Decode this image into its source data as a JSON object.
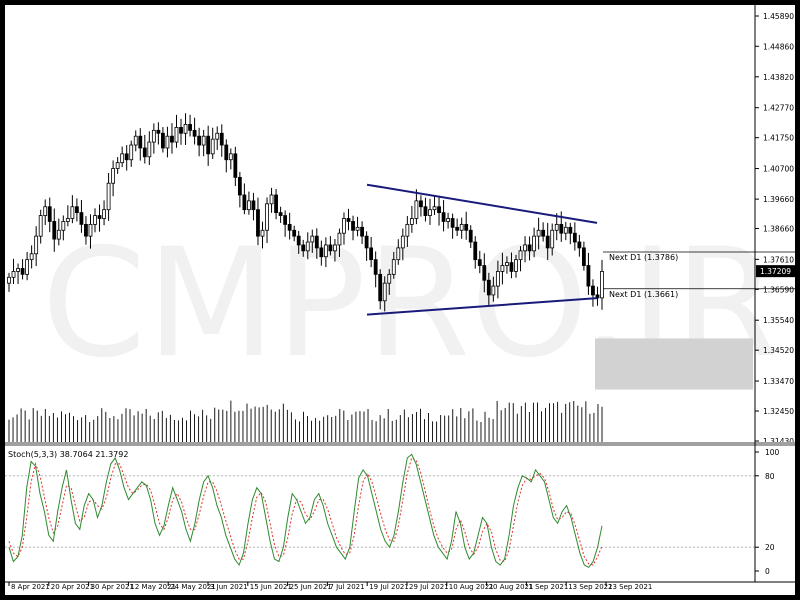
{
  "chart_data": [
    {
      "type": "candlestick",
      "title": "",
      "watermark": "CMPRO.IR",
      "y_axis_ticks": [
        "1.45890",
        "1.44860",
        "1.43820",
        "1.42770",
        "1.41750",
        "1.40700",
        "1.39660",
        "1.38660",
        "1.37610",
        "1.36590",
        "1.35540",
        "1.34520",
        "1.33470",
        "1.32450",
        "1.31430"
      ],
      "ylim": [
        1.3143,
        1.4589
      ],
      "current_price": "1.37209",
      "levels": [
        {
          "label": "Next D1 (1.3786)",
          "price": 1.3786
        },
        {
          "label": "Next D1 (1.3661)",
          "price": 1.3661
        }
      ],
      "trendlines": [
        {
          "name": "upper",
          "from": {
            "x": "15 Jul 2021",
            "y": 1.4015
          },
          "to": {
            "x": "20 Sep 2021",
            "y": 1.3885
          }
        },
        {
          "name": "lower",
          "from": {
            "x": "15 Jul 2021",
            "y": 1.3573
          },
          "to": {
            "x": "20 Sep 2021",
            "y": 1.3629
          }
        }
      ],
      "highlight_zone": {
        "y_top": 1.3492,
        "y_bottom": 1.3318
      },
      "closes": [
        1.37,
        1.372,
        1.373,
        1.371,
        1.376,
        1.378,
        1.384,
        1.391,
        1.394,
        1.389,
        1.383,
        1.386,
        1.389,
        1.39,
        1.394,
        1.392,
        1.388,
        1.384,
        1.388,
        1.391,
        1.39,
        1.393,
        1.402,
        1.407,
        1.409,
        1.412,
        1.41,
        1.415,
        1.418,
        1.414,
        1.411,
        1.416,
        1.42,
        1.419,
        1.414,
        1.418,
        1.416,
        1.421,
        1.419,
        1.422,
        1.42,
        1.418,
        1.415,
        1.418,
        1.412,
        1.417,
        1.419,
        1.415,
        1.41,
        1.412,
        1.404,
        1.398,
        1.393,
        1.396,
        1.393,
        1.384,
        1.386,
        1.395,
        1.398,
        1.392,
        1.391,
        1.388,
        1.386,
        1.384,
        1.381,
        1.379,
        1.382,
        1.384,
        1.38,
        1.377,
        1.381,
        1.379,
        1.381,
        1.385,
        1.39,
        1.389,
        1.386,
        1.387,
        1.384,
        1.38,
        1.376,
        1.371,
        1.362,
        1.368,
        1.371,
        1.376,
        1.38,
        1.384,
        1.388,
        1.39,
        1.396,
        1.394,
        1.391,
        1.393,
        1.394,
        1.392,
        1.389,
        1.39,
        1.387,
        1.386,
        1.388,
        1.386,
        1.382,
        1.376,
        1.374,
        1.369,
        1.364,
        1.367,
        1.372,
        1.374,
        1.375,
        1.372,
        1.376,
        1.379,
        1.381,
        1.379,
        1.384,
        1.386,
        1.384,
        1.38,
        1.386,
        1.388,
        1.385,
        1.387,
        1.385,
        1.382,
        1.38,
        1.374,
        1.367,
        1.364,
        1.363,
        1.372
      ],
      "volume_bars": 148,
      "time_labels": [
        "8 Apr 2021",
        "20 Apr 2021",
        "30 Apr 2021",
        "12 May 2021",
        "24 May 2021",
        "3 Jun 2021",
        "15 Jun 2021",
        "25 Jun 2021",
        "7 Jul 2021",
        "19 Jul 2021",
        "29 Jul 2021",
        "10 Aug 2021",
        "20 Aug 2021",
        "1 Sep 2021",
        "13 Sep 2021",
        "23 Sep 2021"
      ]
    },
    {
      "type": "line",
      "title": "Stoch(5,3,3) 38.7064 21.3792",
      "ylim": [
        0,
        100
      ],
      "y_axis_ticks": [
        "100",
        "80",
        "20",
        "0"
      ],
      "levels": [
        80,
        20
      ],
      "series": [
        {
          "values": [
            20,
            8,
            12,
            30,
            70,
            92,
            88,
            65,
            50,
            30,
            25,
            50,
            70,
            85,
            60,
            40,
            35,
            55,
            65,
            60,
            45,
            55,
            75,
            90,
            95,
            85,
            70,
            60,
            65,
            70,
            75,
            72,
            60,
            40,
            30,
            38,
            55,
            70,
            60,
            50,
            35,
            25,
            40,
            60,
            75,
            80,
            70,
            55,
            45,
            30,
            20,
            10,
            5,
            15,
            40,
            60,
            70,
            65,
            45,
            25,
            10,
            8,
            20,
            45,
            65,
            60,
            50,
            40,
            45,
            60,
            65,
            55,
            40,
            30,
            20,
            15,
            10,
            20,
            50,
            78,
            85,
            80,
            65,
            50,
            35,
            25,
            20,
            30,
            50,
            75,
            95,
            98,
            90,
            75,
            60,
            45,
            30,
            20,
            15,
            10,
            25,
            50,
            40,
            20,
            10,
            15,
            30,
            45,
            40,
            20,
            8,
            5,
            10,
            30,
            55,
            70,
            80,
            78,
            75,
            85,
            80,
            75,
            60,
            45,
            40,
            50,
            55,
            45,
            30,
            15,
            5,
            3,
            8,
            20,
            38
          ]
        },
        {
          "values": [
            25,
            15,
            12,
            20,
            45,
            75,
            90,
            80,
            62,
            45,
            32,
            38,
            55,
            72,
            70,
            55,
            42,
            45,
            58,
            60,
            55,
            52,
            62,
            78,
            90,
            90,
            80,
            70,
            65,
            68,
            72,
            73,
            68,
            55,
            40,
            35,
            45,
            60,
            65,
            58,
            45,
            35,
            35,
            48,
            63,
            75,
            75,
            67,
            55,
            42,
            30,
            18,
            10,
            10,
            25,
            45,
            62,
            66,
            58,
            40,
            22,
            12,
            13,
            28,
            48,
            60,
            58,
            48,
            43,
            50,
            60,
            60,
            52,
            40,
            28,
            20,
            14,
            15,
            30,
            55,
            75,
            82,
            75,
            62,
            48,
            35,
            26,
            25,
            38,
            60,
            82,
            95,
            93,
            83,
            68,
            52,
            38,
            27,
            20,
            15,
            18,
            35,
            43,
            33,
            20,
            14,
            20,
            33,
            40,
            33,
            18,
            9,
            8,
            18,
            38,
            58,
            72,
            78,
            77,
            80,
            82,
            78,
            67,
            52,
            43,
            45,
            50,
            48,
            38,
            25,
            12,
            6,
            5,
            12,
            21
          ]
        }
      ]
    }
  ]
}
